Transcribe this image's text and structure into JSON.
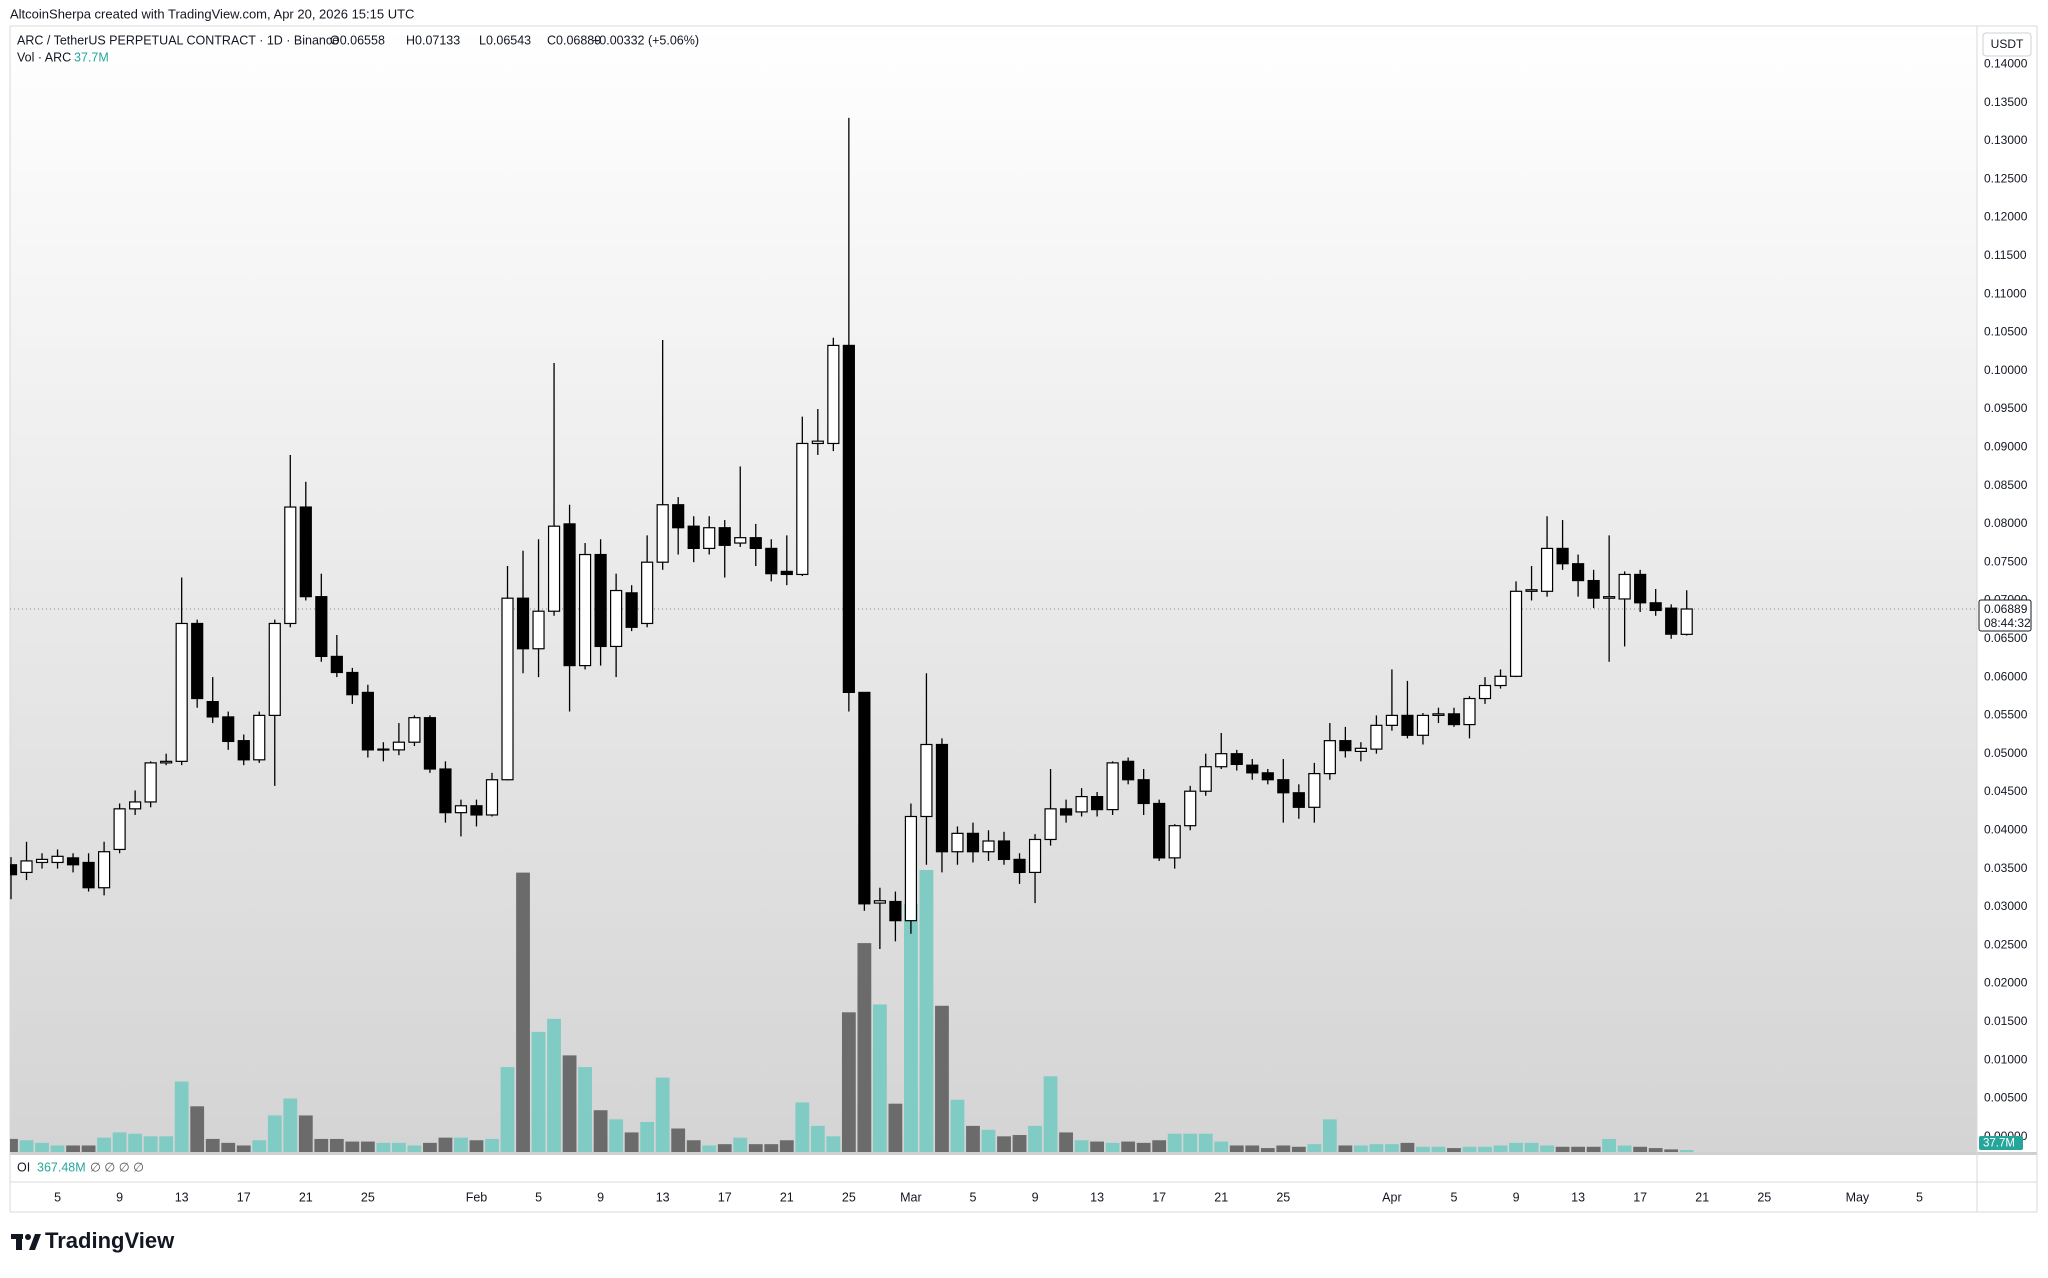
{
  "header": {
    "credit": "AltcoinSherpa created with TradingView.com, Apr 20, 2026 15:15 UTC",
    "symbol": "ARC / TetherUS PERPETUAL CONTRACT · 1D · Binance",
    "open": "O0.06558",
    "high": "H0.07133",
    "low": "L0.06543",
    "close": "C0.06889",
    "change": "+0.00332 (+5.06%)"
  },
  "chart_data": {
    "type": "candlestick",
    "x": [
      "2026-01-02",
      "2026-01-03",
      "2026-01-04",
      "2026-01-05",
      "2026-01-06",
      "2026-01-07",
      "2026-01-08",
      "2026-01-09",
      "2026-01-10",
      "2026-01-11",
      "2026-01-12",
      "2026-01-13",
      "2026-01-14",
      "2026-01-15",
      "2026-01-16",
      "2026-01-17",
      "2026-01-18",
      "2026-01-19",
      "2026-01-20",
      "2026-01-21",
      "2026-01-22",
      "2026-01-23",
      "2026-01-24",
      "2026-01-25",
      "2026-01-26",
      "2026-01-27",
      "2026-01-28",
      "2026-01-29",
      "2026-01-30",
      "2026-01-31",
      "2026-02-01",
      "2026-02-02",
      "2026-02-03",
      "2026-02-04",
      "2026-02-05",
      "2026-02-06",
      "2026-02-07",
      "2026-02-08",
      "2026-02-09",
      "2026-02-10",
      "2026-02-11",
      "2026-02-12",
      "2026-02-13",
      "2026-02-14",
      "2026-02-15",
      "2026-02-16",
      "2026-02-17",
      "2026-02-18",
      "2026-02-19",
      "2026-02-20",
      "2026-02-21",
      "2026-02-22",
      "2026-02-23",
      "2026-02-24",
      "2026-02-25",
      "2026-02-26",
      "2026-02-27",
      "2026-02-28",
      "2026-03-01",
      "2026-03-02",
      "2026-03-03",
      "2026-03-04",
      "2026-03-05",
      "2026-03-06",
      "2026-03-07",
      "2026-03-08",
      "2026-03-09",
      "2026-03-10",
      "2026-03-11",
      "2026-03-12",
      "2026-03-13",
      "2026-03-14",
      "2026-03-15",
      "2026-03-16",
      "2026-03-17",
      "2026-03-18",
      "2026-03-19",
      "2026-03-20",
      "2026-03-21",
      "2026-03-22",
      "2026-03-23",
      "2026-03-24",
      "2026-03-25",
      "2026-03-26",
      "2026-03-27",
      "2026-03-28",
      "2026-03-29",
      "2026-03-30",
      "2026-03-31",
      "2026-04-01",
      "2026-04-02",
      "2026-04-03",
      "2026-04-04",
      "2026-04-05",
      "2026-04-06",
      "2026-04-07",
      "2026-04-08",
      "2026-04-09",
      "2026-04-10",
      "2026-04-11",
      "2026-04-12",
      "2026-04-13",
      "2026-04-14",
      "2026-04-15",
      "2026-04-16",
      "2026-04-17",
      "2026-04-18",
      "2026-04-19",
      "2026-04-20"
    ],
    "open": [
      0.0355,
      0.0345,
      0.0358,
      0.0358,
      0.0364,
      0.0358,
      0.0325,
      0.0375,
      0.0428,
      0.0437,
      0.0488,
      0.049,
      0.067,
      0.0568,
      0.0548,
      0.0517,
      0.0492,
      0.055,
      0.067,
      0.0822,
      0.0705,
      0.0627,
      0.0606,
      0.058,
      0.0505,
      0.0505,
      0.0515,
      0.0547,
      0.048,
      0.0423,
      0.0432,
      0.042,
      0.0466,
      0.0703,
      0.0637,
      0.0686,
      0.08,
      0.0615,
      0.076,
      0.064,
      0.071,
      0.067,
      0.075,
      0.0825,
      0.0797,
      0.0768,
      0.0795,
      0.0775,
      0.0782,
      0.0768,
      0.0738,
      0.0734,
      0.0905,
      0.0905,
      0.1033,
      0.058,
      0.0305,
      0.0307,
      0.0282,
      0.0418,
      0.0512,
      0.0372,
      0.0396,
      0.0372,
      0.0386,
      0.0362,
      0.0345,
      0.0388,
      0.0428,
      0.0424,
      0.0444,
      0.0427,
      0.049,
      0.0466,
      0.0435,
      0.0364,
      0.0406,
      0.0451,
      0.0483,
      0.05,
      0.0485,
      0.0475,
      0.0466,
      0.0449,
      0.043,
      0.0474,
      0.0517,
      0.0503,
      0.0506,
      0.0537,
      0.055,
      0.0524,
      0.055,
      0.0552,
      0.0538,
      0.0572,
      0.0589,
      0.0601,
      0.0712,
      0.0712,
      0.0768,
      0.0748,
      0.0726,
      0.0703,
      0.0702,
      0.0734,
      0.0697,
      0.069,
      0.06558
    ],
    "high": [
      0.0365,
      0.0385,
      0.037,
      0.0375,
      0.037,
      0.037,
      0.0385,
      0.0435,
      0.0452,
      0.049,
      0.05,
      0.073,
      0.0675,
      0.06,
      0.0555,
      0.0525,
      0.0555,
      0.0675,
      0.089,
      0.0855,
      0.0735,
      0.0655,
      0.0612,
      0.059,
      0.0515,
      0.054,
      0.055,
      0.055,
      0.049,
      0.044,
      0.044,
      0.0475,
      0.0745,
      0.0765,
      0.078,
      0.101,
      0.0825,
      0.0775,
      0.078,
      0.0735,
      0.072,
      0.0785,
      0.104,
      0.0835,
      0.081,
      0.081,
      0.0805,
      0.0875,
      0.08,
      0.078,
      0.0785,
      0.094,
      0.095,
      0.1043,
      0.133,
      0.058,
      0.0325,
      0.032,
      0.0435,
      0.0605,
      0.052,
      0.0405,
      0.041,
      0.04,
      0.0398,
      0.037,
      0.0395,
      0.048,
      0.044,
      0.0455,
      0.045,
      0.049,
      0.0495,
      0.048,
      0.044,
      0.0408,
      0.0458,
      0.05,
      0.0527,
      0.0505,
      0.0493,
      0.048,
      0.0493,
      0.046,
      0.0488,
      0.054,
      0.0535,
      0.0515,
      0.055,
      0.061,
      0.0595,
      0.0553,
      0.056,
      0.056,
      0.0575,
      0.06,
      0.061,
      0.0725,
      0.0745,
      0.081,
      0.0805,
      0.076,
      0.074,
      0.0785,
      0.0738,
      0.074,
      0.0715,
      0.0695,
      0.07133
    ],
    "low": [
      0.031,
      0.0335,
      0.035,
      0.035,
      0.0345,
      0.032,
      0.0315,
      0.037,
      0.042,
      0.043,
      0.0485,
      0.0485,
      0.056,
      0.054,
      0.0505,
      0.0485,
      0.0488,
      0.0458,
      0.0665,
      0.07,
      0.062,
      0.06,
      0.0565,
      0.0495,
      0.049,
      0.0498,
      0.051,
      0.0475,
      0.041,
      0.0392,
      0.0405,
      0.0418,
      0.0465,
      0.0605,
      0.06,
      0.068,
      0.0555,
      0.061,
      0.0615,
      0.06,
      0.066,
      0.0665,
      0.074,
      0.076,
      0.075,
      0.076,
      0.073,
      0.077,
      0.0745,
      0.0725,
      0.072,
      0.0732,
      0.089,
      0.0895,
      0.0555,
      0.0295,
      0.0245,
      0.0255,
      0.0265,
      0.0355,
      0.0345,
      0.0355,
      0.0358,
      0.036,
      0.0355,
      0.033,
      0.0305,
      0.038,
      0.041,
      0.0418,
      0.0418,
      0.042,
      0.046,
      0.042,
      0.036,
      0.035,
      0.04,
      0.0445,
      0.048,
      0.0478,
      0.0466,
      0.046,
      0.041,
      0.0415,
      0.041,
      0.0466,
      0.0495,
      0.049,
      0.05,
      0.053,
      0.052,
      0.0512,
      0.054,
      0.0535,
      0.052,
      0.0565,
      0.0585,
      0.06,
      0.07,
      0.0705,
      0.074,
      0.0705,
      0.069,
      0.062,
      0.064,
      0.0685,
      0.068,
      0.065,
      0.06543
    ],
    "close": [
      0.0342,
      0.036,
      0.0362,
      0.0366,
      0.0355,
      0.0325,
      0.0372,
      0.0428,
      0.0437,
      0.0488,
      0.049,
      0.067,
      0.0572,
      0.0548,
      0.0516,
      0.0492,
      0.055,
      0.067,
      0.0822,
      0.0705,
      0.0627,
      0.0606,
      0.0577,
      0.0505,
      0.0506,
      0.0515,
      0.0547,
      0.048,
      0.0423,
      0.0432,
      0.042,
      0.0466,
      0.0703,
      0.0637,
      0.0686,
      0.0797,
      0.0615,
      0.076,
      0.064,
      0.0713,
      0.0665,
      0.075,
      0.0825,
      0.0795,
      0.0768,
      0.0795,
      0.0772,
      0.0782,
      0.0768,
      0.0735,
      0.0734,
      0.0905,
      0.0908,
      0.1033,
      0.058,
      0.0304,
      0.0308,
      0.0282,
      0.0418,
      0.0512,
      0.0372,
      0.0396,
      0.0372,
      0.0386,
      0.0362,
      0.0345,
      0.0388,
      0.0428,
      0.042,
      0.0444,
      0.0427,
      0.0488,
      0.0466,
      0.0435,
      0.0364,
      0.0406,
      0.0451,
      0.0483,
      0.05,
      0.0486,
      0.0475,
      0.0466,
      0.0449,
      0.043,
      0.0474,
      0.0517,
      0.0504,
      0.0507,
      0.0537,
      0.055,
      0.0524,
      0.055,
      0.0552,
      0.0538,
      0.0572,
      0.0589,
      0.0601,
      0.0712,
      0.0714,
      0.0768,
      0.0748,
      0.0726,
      0.0703,
      0.0705,
      0.0734,
      0.0697,
      0.0687,
      0.0656,
      0.06889
    ],
    "up_color": "#ffffff",
    "down_color": "#000000",
    "volume": {
      "name": "Vol · ARC",
      "last_label": "37.7M",
      "up_color": "#80cbc4",
      "down_color": "#6b6b6b",
      "values": [
        250,
        225,
        175,
        125,
        125,
        125,
        275,
        375,
        350,
        300,
        300,
        1350,
        875,
        250,
        175,
        125,
        225,
        700,
        1025,
        700,
        250,
        250,
        200,
        200,
        175,
        175,
        125,
        175,
        275,
        275,
        225,
        250,
        1625,
        5350,
        2300,
        2550,
        1850,
        1625,
        800,
        625,
        375,
        575,
        1425,
        450,
        225,
        125,
        150,
        275,
        150,
        150,
        225,
        950,
        500,
        300,
        2675,
        4000,
        2825,
        925,
        4750,
        5400,
        2800,
        1000,
        500,
        425,
        300,
        325,
        500,
        1450,
        375,
        225,
        200,
        175,
        200,
        175,
        225,
        350,
        350,
        350,
        200,
        125,
        125,
        75,
        125,
        100,
        150,
        625,
        125,
        125,
        150,
        150,
        175,
        100,
        100,
        75,
        100,
        100,
        125,
        175,
        175,
        125,
        100,
        100,
        100,
        250,
        125,
        100,
        75,
        50,
        37.7
      ]
    },
    "ylim": [
      -0.002,
      0.145
    ],
    "y_unit": "USDT",
    "yticks": [
      {
        "value": 0.14,
        "label": "0.14000"
      },
      {
        "value": 0.135,
        "label": "0.13500"
      },
      {
        "value": 0.13,
        "label": "0.13000"
      },
      {
        "value": 0.125,
        "label": "0.12500"
      },
      {
        "value": 0.12,
        "label": "0.12000"
      },
      {
        "value": 0.115,
        "label": "0.11500"
      },
      {
        "value": 0.11,
        "label": "0.11000"
      },
      {
        "value": 0.105,
        "label": "0.10500"
      },
      {
        "value": 0.1,
        "label": "0.10000"
      },
      {
        "value": 0.095,
        "label": "0.09500"
      },
      {
        "value": 0.09,
        "label": "0.09000"
      },
      {
        "value": 0.085,
        "label": "0.08500"
      },
      {
        "value": 0.08,
        "label": "0.08000"
      },
      {
        "value": 0.075,
        "label": "0.07500"
      },
      {
        "value": 0.07,
        "label": "0.07000"
      },
      {
        "value": 0.065,
        "label": "0.06500"
      },
      {
        "value": 0.06,
        "label": "0.06000"
      },
      {
        "value": 0.055,
        "label": "0.05500"
      },
      {
        "value": 0.05,
        "label": "0.05000"
      },
      {
        "value": 0.045,
        "label": "0.04500"
      },
      {
        "value": 0.04,
        "label": "0.04000"
      },
      {
        "value": 0.035,
        "label": "0.03500"
      },
      {
        "value": 0.03,
        "label": "0.03000"
      },
      {
        "value": 0.025,
        "label": "0.02500"
      },
      {
        "value": 0.02,
        "label": "0.02000"
      },
      {
        "value": 0.015,
        "label": "0.01500"
      },
      {
        "value": 0.01,
        "label": "0.01000"
      },
      {
        "value": 0.005,
        "label": "0.00500"
      },
      {
        "value": 0,
        "label": "0.00000"
      }
    ],
    "xlim": [
      "2026-01-02",
      "2026-05-08"
    ],
    "xticks": [
      {
        "value": "2026-01-05",
        "label": "5"
      },
      {
        "value": "2026-01-09",
        "label": "9"
      },
      {
        "value": "2026-01-13",
        "label": "13"
      },
      {
        "value": "2026-01-17",
        "label": "17"
      },
      {
        "value": "2026-01-21",
        "label": "21"
      },
      {
        "value": "2026-01-25",
        "label": "25"
      },
      {
        "value": "2026-02-01",
        "label": "Feb"
      },
      {
        "value": "2026-02-05",
        "label": "5"
      },
      {
        "value": "2026-02-09",
        "label": "9"
      },
      {
        "value": "2026-02-13",
        "label": "13"
      },
      {
        "value": "2026-02-17",
        "label": "17"
      },
      {
        "value": "2026-02-21",
        "label": "21"
      },
      {
        "value": "2026-02-25",
        "label": "25"
      },
      {
        "value": "2026-03-01",
        "label": "Mar"
      },
      {
        "value": "2026-03-05",
        "label": "5"
      },
      {
        "value": "2026-03-09",
        "label": "9"
      },
      {
        "value": "2026-03-13",
        "label": "13"
      },
      {
        "value": "2026-03-17",
        "label": "17"
      },
      {
        "value": "2026-03-21",
        "label": "21"
      },
      {
        "value": "2026-03-25",
        "label": "25"
      },
      {
        "value": "2026-04-01",
        "label": "Apr"
      },
      {
        "value": "2026-04-05",
        "label": "5"
      },
      {
        "value": "2026-04-09",
        "label": "9"
      },
      {
        "value": "2026-04-13",
        "label": "13"
      },
      {
        "value": "2026-04-17",
        "label": "17"
      },
      {
        "value": "2026-04-21",
        "label": "21"
      },
      {
        "value": "2026-04-25",
        "label": "25"
      },
      {
        "value": "2026-05-01",
        "label": "May"
      },
      {
        "value": "2026-05-05",
        "label": "5"
      }
    ],
    "last_price_label": "0.06889",
    "countdown": "08:44:32",
    "grid": false
  },
  "oi": {
    "label": "OI",
    "value": "367.48M",
    "placeholders": "∅ ∅ ∅ ∅"
  },
  "brand": "TradingView"
}
